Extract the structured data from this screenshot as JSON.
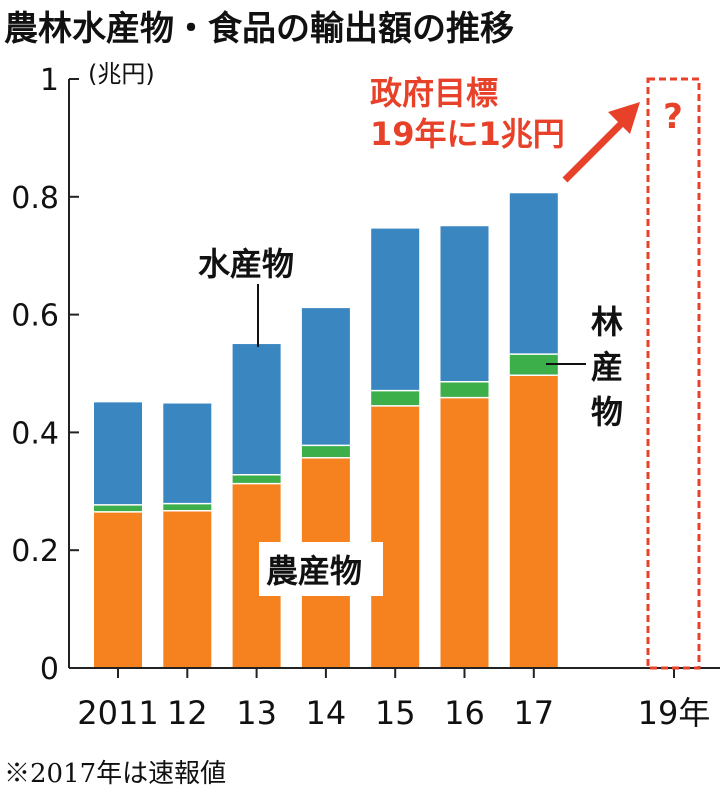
{
  "chart_data": {
    "type": "bar",
    "stacked": true,
    "title": "農林水産物・食品の輸出額の推移",
    "unit_label": "(兆円)",
    "categories": [
      "2011",
      "12",
      "13",
      "14",
      "15",
      "16",
      "17"
    ],
    "series": [
      {
        "name": "農産物",
        "values": [
          0.265,
          0.267,
          0.313,
          0.357,
          0.445,
          0.459,
          0.497
        ],
        "color": "#f5821f"
      },
      {
        "name": "林産物",
        "values": [
          0.012,
          0.012,
          0.015,
          0.021,
          0.026,
          0.027,
          0.036
        ],
        "color": "#3cae4a"
      },
      {
        "name": "水産物",
        "values": [
          0.174,
          0.17,
          0.222,
          0.233,
          0.275,
          0.264,
          0.273
        ],
        "color": "#3a86c0"
      }
    ],
    "target": {
      "category": "19年",
      "label_lines": [
        "政府目標",
        "19年に1兆円"
      ],
      "mark": "?",
      "value": 1,
      "color": "#e8412a"
    },
    "ylim": [
      0,
      1
    ],
    "yticks": [
      0,
      0.2,
      0.4,
      0.6,
      0.8,
      1
    ],
    "ytick_labels": [
      "0",
      "0.2",
      "0.4",
      "0.6",
      "0.8",
      "1"
    ],
    "xlabel": "",
    "ylabel": "",
    "grid": false,
    "note": "※2017年は速報値"
  }
}
